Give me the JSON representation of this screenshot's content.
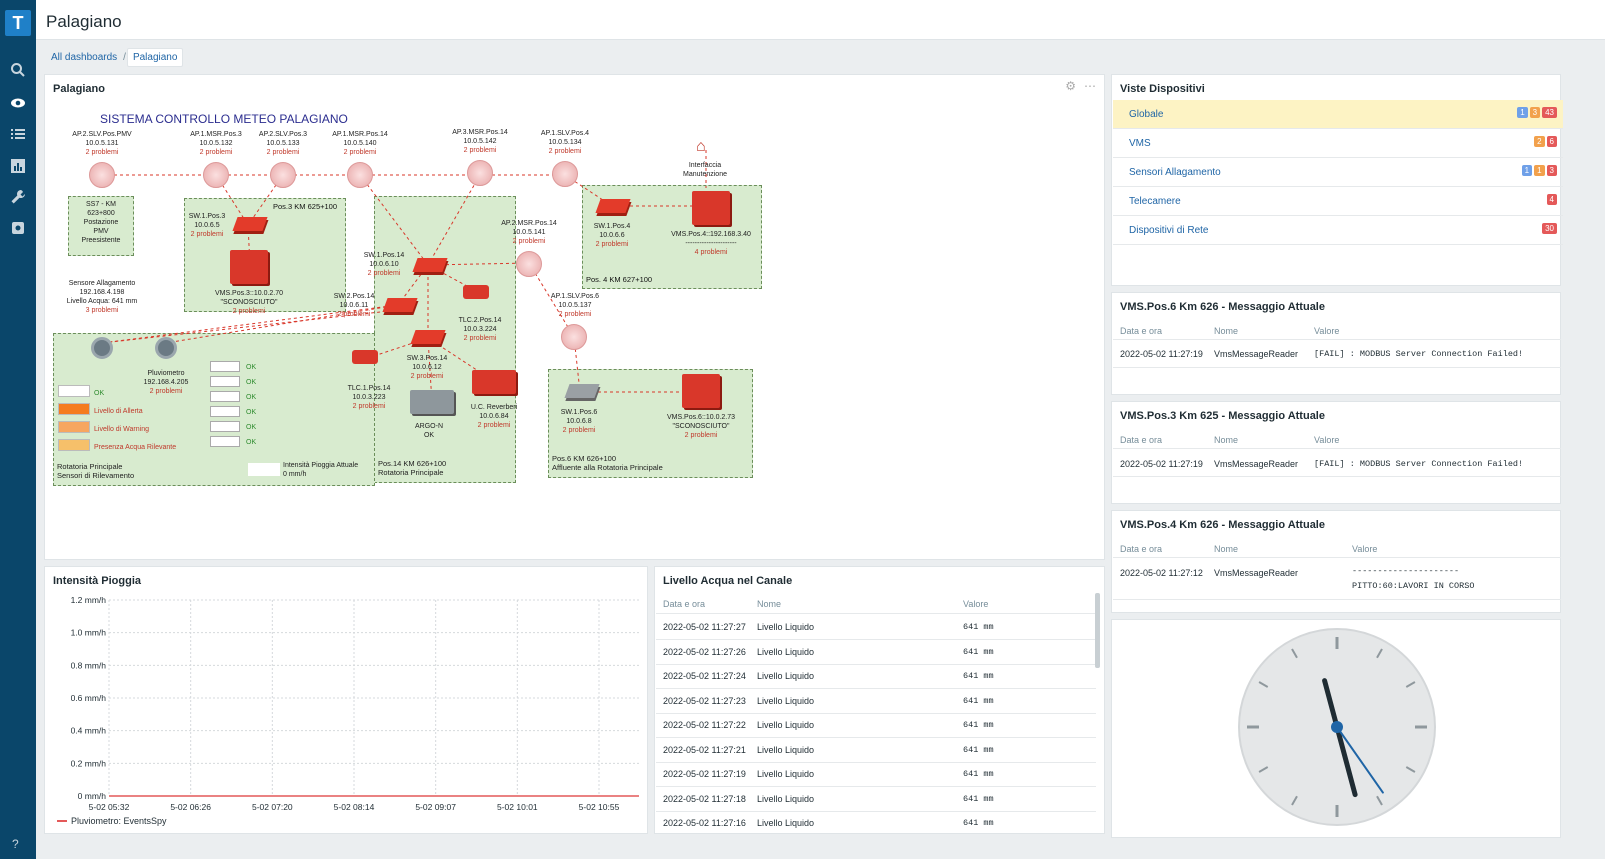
{
  "app": {
    "title": "Palagiano"
  },
  "breadcrumb": {
    "all": "All dashboards",
    "separator": "/",
    "current": "Palagiano"
  },
  "sidebar": {
    "logo": "T",
    "icons": [
      "search-icon",
      "eye-icon",
      "list-icon",
      "reports-icon",
      "wrench-icon",
      "gear-icon"
    ],
    "help": "?"
  },
  "map_panel": {
    "title": "Palagiano",
    "map_title": "SISTEMA CONTROLLO METEO PALAGIANO",
    "nodes": [
      {
        "id": "ap2slv-pmv",
        "label": "AP.2.SLV.Pos.PMV\n10.0.5.131",
        "problems": "2 problemi"
      },
      {
        "id": "ap1msr3",
        "label": "AP.1.MSR.Pos.3\n10.0.5.132",
        "problems": "2 problemi"
      },
      {
        "id": "ap2slv3",
        "label": "AP.2.SLV.Pos.3\n10.0.5.133",
        "problems": "2 problemi"
      },
      {
        "id": "ap1msr14",
        "label": "AP.1.MSR.Pos.14\n10.0.5.140",
        "problems": "2 problemi"
      },
      {
        "id": "ap3msr14",
        "label": "AP.3.MSR.Pos.14\n10.0.5.142",
        "problems": "2 problemi"
      },
      {
        "id": "ap1slv4",
        "label": "AP.1.SLV.Pos.4\n10.0.5.134",
        "problems": "2 problemi"
      },
      {
        "id": "interfaccia",
        "label": "Interfaccia\nManutenzione",
        "problems": ""
      },
      {
        "id": "sw1pos3",
        "label": "SW.1.Pos.3\n10.0.6.5",
        "problems": "2 problemi"
      },
      {
        "id": "ap2msr14",
        "label": "AP.2.MSR.Pos.14\n10.0.5.141",
        "problems": "2 problemi"
      },
      {
        "id": "sw1pos4",
        "label": "SW.1.Pos.4\n10.0.6.6",
        "problems": "2 problemi"
      },
      {
        "id": "vmspos4",
        "label": "VMS.Pos.4::192.168.3.40\n----------------------",
        "problems": "4 problemi"
      },
      {
        "id": "sw1pos14",
        "label": "SW.1.Pos.14\n10.0.6.10",
        "problems": "2 problemi"
      },
      {
        "id": "vmspos3",
        "label": "VMS.Pos.3::10.0.2.70\n\"SCONOSCIUTO\"",
        "problems": "2 problemi"
      },
      {
        "id": "sensore",
        "label": "Sensore Allagamento\n192.168.4.198\nLivello Acqua: 641 mm",
        "problems": "3 problemi"
      },
      {
        "id": "sw2pos14",
        "label": "SW.2.Pos.14\n10.0.6.11",
        "problems": "2 problemi"
      },
      {
        "id": "ap1slv6",
        "label": "AP.1.SLV.Pos.6\n10.0.5.137",
        "problems": "2 problemi"
      },
      {
        "id": "tlc2pos14",
        "label": "TLC.2.Pos.14\n10.0.3.224",
        "problems": "2 problemi"
      },
      {
        "id": "sw3pos14",
        "label": "SW.3.Pos.14\n10.0.6.12",
        "problems": "2 problemi"
      },
      {
        "id": "pluviometro",
        "label": "Pluviometro\n192.168.4.205",
        "problems": "2 problemi"
      },
      {
        "id": "tlc1pos14",
        "label": "TLC.1.Pos.14\n10.0.3.223",
        "problems": "2 problemi"
      },
      {
        "id": "argo",
        "label": "ARGO-N\nOK",
        "problems": ""
      },
      {
        "id": "uc",
        "label": "U.C. Reverberi\n10.0.6.84",
        "problems": "2 problemi"
      },
      {
        "id": "sw1pos6",
        "label": "SW.1.Pos.6\n10.0.6.8",
        "problems": "2 problemi"
      },
      {
        "id": "vmspos6",
        "label": "VMS.Pos.6::10.0.2.73\n\"SCONOSCIUTO\"",
        "problems": "2 problemi"
      }
    ],
    "zones": {
      "ss7": "SS7 - KM\n623+800\nPostazione\nPMV\nPreesistente",
      "pos3": "Pos.3 KM 625+100",
      "pos4": "Pos. 4 KM 627+100",
      "pos14": "Pos.14 KM 626+100\nRotatoria Principale",
      "pos6": "Pos.6 KM 626+100\nAffluente alla Rotatoria Principale",
      "sensori": "Rotatoria Principale\nSensori di Rilevamento"
    },
    "legend": [
      {
        "label": "OK",
        "color": "#ffffff",
        "text_color": "#2e8b2e"
      },
      {
        "label": "Livello di Allerta",
        "color": "#f57c1f",
        "text_color": "#c0392b"
      },
      {
        "label": "Livello di Warning",
        "color": "#f7a660",
        "text_color": "#c0392b"
      },
      {
        "label": "Presenza Acqua Rilevante",
        "color": "#f6c06a",
        "text_color": "#c0392b"
      }
    ],
    "ok_column": [
      "OK",
      "OK",
      "OK",
      "OK",
      "OK",
      "OK"
    ],
    "intensity": "Intensità Pioggia Attuale\n0 mm/h"
  },
  "device_views": {
    "title": "Viste Dispositivi",
    "rows": [
      {
        "name": "Globale",
        "badges": [
          {
            "v": "1",
            "c": "b-blue"
          },
          {
            "v": "3",
            "c": "b-orange"
          },
          {
            "v": "43",
            "c": "b-red"
          }
        ],
        "highlight": true
      },
      {
        "name": "VMS",
        "badges": [
          {
            "v": "2",
            "c": "b-orange"
          },
          {
            "v": "6",
            "c": "b-red"
          }
        ]
      },
      {
        "name": "Sensori Allagamento",
        "badges": [
          {
            "v": "1",
            "c": "b-blue"
          },
          {
            "v": "1",
            "c": "b-orange"
          },
          {
            "v": "3",
            "c": "b-red"
          }
        ]
      },
      {
        "name": "Telecamere",
        "badges": [
          {
            "v": "4",
            "c": "b-red"
          }
        ]
      },
      {
        "name": "Dispositivi di Rete",
        "badges": [
          {
            "v": "30",
            "c": "b-red"
          }
        ]
      }
    ]
  },
  "vms6": {
    "title": "VMS.Pos.6 Km 626 - Messaggio Attuale",
    "cols": [
      "Data e ora",
      "Nome",
      "Valore"
    ],
    "row": [
      "2022-05-02 11:27:19",
      "VmsMessageReader",
      "[FAIL] : MODBUS Server Connection Failed!"
    ]
  },
  "vms3": {
    "title": "VMS.Pos.3 Km 625 - Messaggio Attuale",
    "cols": [
      "Data e ora",
      "Nome",
      "Valore"
    ],
    "row": [
      "2022-05-02 11:27:19",
      "VmsMessageReader",
      "[FAIL] : MODBUS Server Connection Failed!"
    ]
  },
  "vms4": {
    "title": "VMS.Pos.4 Km 626 - Messaggio Attuale",
    "cols": [
      "Data e ora",
      "Nome",
      "Valore"
    ],
    "row": [
      "2022-05-02 11:27:12",
      "VmsMessageReader",
      "---------------------",
      "PITTO:60:LAVORI IN CORSO"
    ]
  },
  "rain_panel": {
    "title": "Intensità Pioggia",
    "legend": "Pluviometro: EventsSpy"
  },
  "chart_data": {
    "type": "line",
    "title": "Intensità Pioggia",
    "xlabel": "",
    "ylabel": "",
    "y_ticks": [
      "1.2 mm/h",
      "1.0 mm/h",
      "0.8 mm/h",
      "0.6 mm/h",
      "0.4 mm/h",
      "0.2 mm/h",
      "0 mm/h"
    ],
    "x_ticks": [
      "5-02 05:32",
      "5-02 06:26",
      "5-02 07:20",
      "5-02 08:14",
      "5-02 09:07",
      "5-02 10:01",
      "5-02 10:55"
    ],
    "ylim": [
      0,
      1.2
    ],
    "series": [
      {
        "name": "Pluviometro: EventsSpy",
        "color": "#e45959",
        "x": [
          "5-02 05:32",
          "5-02 10:55"
        ],
        "values": [
          0,
          0
        ]
      }
    ],
    "grid": true,
    "legend": "bottom-left"
  },
  "water_panel": {
    "title": "Livello Acqua nel Canale",
    "cols": [
      "Data e ora",
      "Nome",
      "Valore"
    ],
    "rows": [
      [
        "2022-05-02 11:27:27",
        "Livello Liquido",
        "641 mm"
      ],
      [
        "2022-05-02 11:27:26",
        "Livello Liquido",
        "641 mm"
      ],
      [
        "2022-05-02 11:27:24",
        "Livello Liquido",
        "641 mm"
      ],
      [
        "2022-05-02 11:27:23",
        "Livello Liquido",
        "641 mm"
      ],
      [
        "2022-05-02 11:27:22",
        "Livello Liquido",
        "641 mm"
      ],
      [
        "2022-05-02 11:27:21",
        "Livello Liquido",
        "641 mm"
      ],
      [
        "2022-05-02 11:27:19",
        "Livello Liquido",
        "641 mm"
      ],
      [
        "2022-05-02 11:27:18",
        "Livello Liquido",
        "641 mm"
      ],
      [
        "2022-05-02 11:27:16",
        "Livello Liquido",
        "641 mm"
      ]
    ]
  },
  "clock": {
    "hour_angle": 345,
    "minute_angle": 165,
    "second_angle": 145
  }
}
